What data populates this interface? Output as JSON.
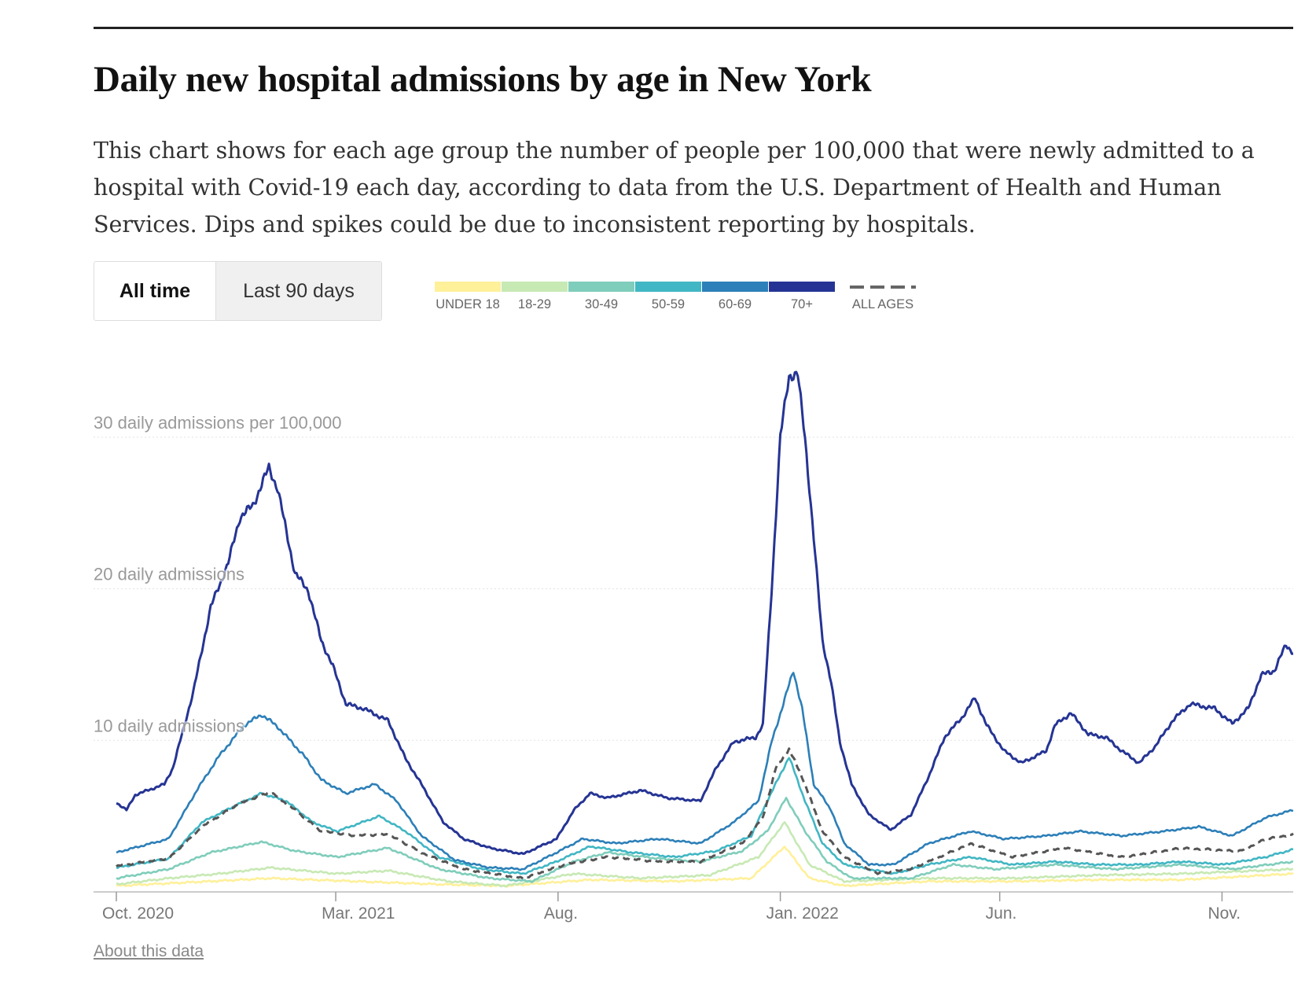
{
  "header": {
    "title": "Daily new hospital admissions by age in New York",
    "description": "This chart shows for each age group the number of people per 100,000 that were newly admitted to a hospital with Covid-19 each day, according to data from the U.S. Department of Health and Human Services. Dips and spikes could be due to inconsistent reporting by hospitals."
  },
  "controls": {
    "all_time": "All time",
    "last_90": "Last 90 days"
  },
  "footer": {
    "about": "About this data"
  },
  "chart_data": {
    "type": "line",
    "title": "Daily new hospital admissions by age in New York",
    "ylabel": "daily admissions per 100,000",
    "xlabel": "",
    "x_unit": "days since Oct. 1, 2020",
    "xlim": [
      0,
      810
    ],
    "ylim": [
      0,
      35
    ],
    "grid": true,
    "legend_position": "top",
    "y_ticks": [
      {
        "value": 30,
        "label": "30 daily admissions per 100,000"
      },
      {
        "value": 20,
        "label": "20 daily admissions"
      },
      {
        "value": 10,
        "label": "10 daily admissions"
      }
    ],
    "x_ticks": [
      {
        "value": 0,
        "label": "Oct. 2020"
      },
      {
        "value": 151,
        "label": "Mar. 2021"
      },
      {
        "value": 304,
        "label": "Aug."
      },
      {
        "value": 457,
        "label": "Jan. 2022"
      },
      {
        "value": 608,
        "label": "Jun."
      },
      {
        "value": 761,
        "label": "Nov."
      }
    ],
    "series": [
      {
        "name": "UNDER 18",
        "color": "#fff09a",
        "dashed": false,
        "x": [
          0,
          65,
          106,
          164,
          222,
          268,
          326,
          384,
          437,
          460,
          477,
          501,
          559,
          617,
          675,
          733,
          810
        ],
        "y": [
          0.4,
          0.7,
          0.9,
          0.7,
          0.5,
          0.4,
          0.8,
          0.7,
          0.9,
          3.0,
          0.9,
          0.4,
          0.7,
          0.7,
          0.8,
          0.8,
          1.2
        ]
      },
      {
        "name": "18-29",
        "color": "#c7e9b4",
        "dashed": false,
        "x": [
          0,
          36,
          71,
          106,
          152,
          187,
          228,
          268,
          315,
          361,
          408,
          442,
          460,
          477,
          501,
          559,
          617,
          675,
          733,
          810
        ],
        "y": [
          0.5,
          0.9,
          1.2,
          1.6,
          1.2,
          1.4,
          0.7,
          0.4,
          1.2,
          0.9,
          1.1,
          2.3,
          4.6,
          1.8,
          0.7,
          0.9,
          0.9,
          1.1,
          1.2,
          1.5
        ]
      },
      {
        "name": "30-49",
        "color": "#7fcdbb",
        "dashed": false,
        "x": [
          0,
          36,
          65,
          100,
          123,
          152,
          187,
          222,
          257,
          286,
          315,
          338,
          373,
          402,
          431,
          448,
          461,
          474,
          489,
          506,
          547,
          576,
          605,
          646,
          687,
          733,
          768,
          810
        ],
        "y": [
          0.9,
          1.5,
          2.6,
          3.3,
          2.7,
          2.3,
          2.9,
          1.5,
          0.9,
          0.7,
          2.0,
          2.6,
          2.2,
          2.0,
          2.7,
          4.0,
          6.2,
          4.0,
          2.0,
          0.9,
          0.9,
          1.8,
          1.5,
          1.8,
          1.5,
          1.8,
          1.5,
          2.0
        ]
      },
      {
        "name": "50-59",
        "color": "#41b6c4",
        "dashed": false,
        "x": [
          0,
          36,
          59,
          82,
          100,
          117,
          135,
          152,
          181,
          199,
          222,
          251,
          280,
          303,
          326,
          355,
          384,
          413,
          437,
          448,
          463,
          474,
          486,
          501,
          535,
          559,
          588,
          617,
          646,
          675,
          704,
          733,
          762,
          791,
          810
        ],
        "y": [
          1.6,
          2.2,
          4.6,
          5.7,
          6.5,
          6.0,
          4.6,
          4.0,
          5.0,
          4.0,
          2.3,
          1.5,
          1.2,
          2.0,
          3.0,
          2.6,
          2.3,
          2.7,
          3.7,
          6.0,
          8.9,
          6.0,
          3.2,
          1.8,
          1.2,
          1.8,
          2.3,
          1.8,
          2.0,
          1.8,
          1.8,
          2.0,
          1.8,
          2.3,
          2.8
        ]
      },
      {
        "name": "60-69",
        "color": "#2c7fb8",
        "dashed": false,
        "x": [
          0,
          36,
          56,
          71,
          88,
          100,
          111,
          129,
          141,
          158,
          178,
          193,
          210,
          233,
          257,
          280,
          303,
          321,
          344,
          373,
          402,
          425,
          442,
          451,
          460,
          466,
          472,
          480,
          492,
          501,
          518,
          535,
          559,
          588,
          611,
          640,
          663,
          692,
          721,
          745,
          768,
          791,
          810
        ],
        "y": [
          2.6,
          3.5,
          6.8,
          9.0,
          11.0,
          11.7,
          10.9,
          9.0,
          7.4,
          6.5,
          7.1,
          6.0,
          3.7,
          2.1,
          1.6,
          1.5,
          2.6,
          3.5,
          3.2,
          3.5,
          3.2,
          4.6,
          6.0,
          9.9,
          12.7,
          14.6,
          12.1,
          7.1,
          5.4,
          3.2,
          1.8,
          1.8,
          3.2,
          4.0,
          3.5,
          3.7,
          4.0,
          3.7,
          4.0,
          4.3,
          3.7,
          4.9,
          5.4
        ]
      },
      {
        "name": "70+",
        "color": "#253494",
        "dashed": false,
        "x": [
          0,
          7,
          13,
          33,
          39,
          53,
          65,
          77,
          85,
          94,
          105,
          111,
          123,
          132,
          141,
          149,
          158,
          170,
          187,
          199,
          210,
          225,
          239,
          257,
          280,
          303,
          315,
          326,
          338,
          361,
          379,
          402,
          413,
          425,
          440,
          445,
          451,
          457,
          463,
          469,
          474,
          480,
          486,
          492,
          498,
          506,
          518,
          533,
          547,
          559,
          570,
          582,
          591,
          599,
          611,
          623,
          640,
          646,
          657,
          669,
          681,
          692,
          704,
          715,
          727,
          739,
          756,
          768,
          779,
          788,
          797,
          805,
          810
        ],
        "y": [
          5.9,
          5.4,
          6.4,
          7.1,
          8.2,
          13.2,
          18.8,
          21.7,
          24.7,
          25.5,
          28.0,
          26.6,
          21.0,
          19.9,
          16.6,
          14.9,
          12.4,
          12.1,
          11.3,
          8.8,
          7.1,
          4.6,
          3.5,
          2.9,
          2.5,
          3.5,
          5.4,
          6.5,
          6.2,
          6.7,
          6.2,
          6.0,
          8.2,
          9.9,
          10.2,
          11.0,
          19.9,
          30.0,
          34.1,
          34.1,
          30.0,
          23.3,
          16.6,
          13.8,
          9.9,
          7.1,
          5.1,
          4.1,
          5.1,
          7.6,
          10.2,
          11.5,
          12.8,
          11.0,
          9.3,
          8.5,
          9.3,
          11.0,
          11.8,
          10.4,
          10.2,
          9.3,
          8.5,
          9.6,
          11.3,
          12.4,
          12.1,
          11.1,
          12.1,
          14.3,
          14.6,
          16.3,
          15.8
        ]
      },
      {
        "name": "ALL AGES",
        "color": "#555555",
        "dashed": true,
        "x": [
          0,
          36,
          59,
          82,
          106,
          123,
          141,
          164,
          187,
          210,
          239,
          280,
          309,
          338,
          373,
          402,
          431,
          445,
          454,
          463,
          472,
          486,
          501,
          524,
          547,
          588,
          617,
          652,
          692,
          733,
          774,
          791,
          810
        ],
        "y": [
          1.7,
          2.2,
          4.3,
          5.7,
          6.6,
          5.4,
          4.0,
          3.7,
          3.8,
          2.6,
          1.5,
          0.9,
          1.8,
          2.3,
          2.0,
          2.0,
          3.2,
          4.9,
          8.2,
          9.4,
          7.6,
          4.0,
          2.3,
          1.2,
          1.5,
          3.2,
          2.3,
          2.9,
          2.3,
          2.9,
          2.7,
          3.5,
          3.8
        ]
      }
    ]
  }
}
